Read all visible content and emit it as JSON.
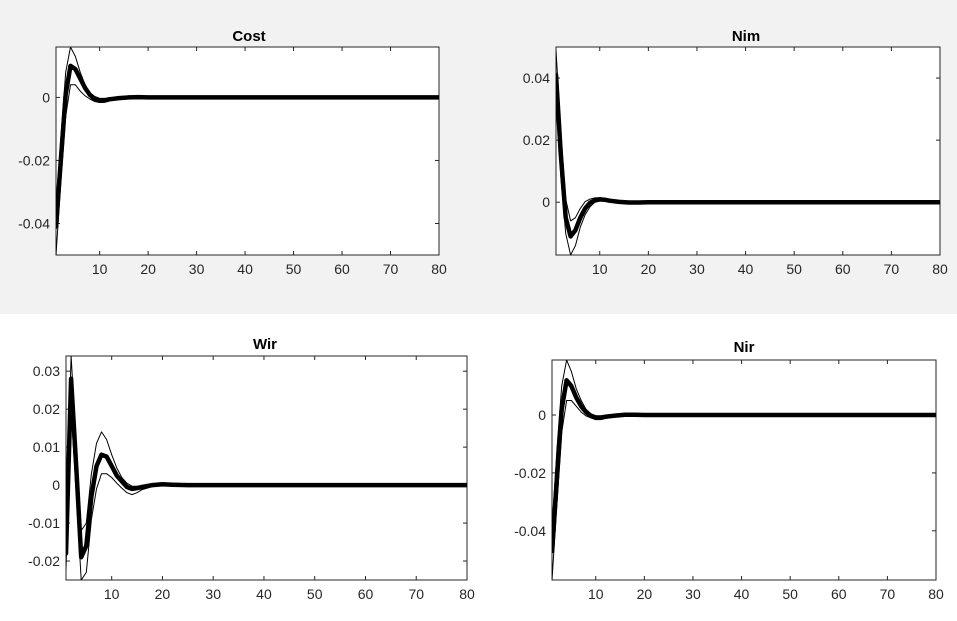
{
  "chart_data": [
    {
      "type": "line",
      "title": "Cost",
      "xlim": [
        1,
        80
      ],
      "ylim": [
        -0.05,
        0.016
      ],
      "xticks": [
        10,
        20,
        30,
        40,
        50,
        60,
        70,
        80
      ],
      "yticks": [
        0,
        -0.02,
        -0.04
      ],
      "xtick_labels": [
        "10",
        "20",
        "30",
        "40",
        "50",
        "60",
        "70",
        "80"
      ],
      "ytick_labels": [
        "0",
        "-0.02",
        "-0.04"
      ],
      "series": [
        {
          "role": "response",
          "x": [
            1,
            2,
            3,
            4,
            5,
            6,
            7,
            8,
            9,
            10,
            11,
            12,
            14,
            16,
            18,
            20,
            25,
            30,
            80
          ],
          "y": [
            -0.041,
            -0.02,
            0.001,
            0.01,
            0.009,
            0.006,
            0.003,
            0.0008,
            -0.0005,
            -0.001,
            -0.001,
            -0.0006,
            -0.0002,
            0,
            0.0001,
            0,
            0,
            0,
            0
          ]
        },
        {
          "role": "upper_band",
          "x": [
            1,
            2,
            3,
            4,
            5,
            6,
            7,
            8,
            9,
            10,
            11,
            12,
            14,
            16,
            18,
            20,
            25,
            30,
            80
          ],
          "y": [
            -0.036,
            -0.013,
            0.008,
            0.016,
            0.013,
            0.008,
            0.004,
            0.0015,
            0.0003,
            -0.0003,
            -0.0003,
            -0.0001,
            0.0001,
            0.0002,
            0.0002,
            0.0001,
            0,
            0,
            0
          ]
        },
        {
          "role": "lower_band",
          "x": [
            1,
            2,
            3,
            4,
            5,
            6,
            7,
            8,
            9,
            10,
            11,
            12,
            14,
            16,
            18,
            20,
            25,
            30,
            80
          ],
          "y": [
            -0.05,
            -0.027,
            -0.006,
            0.004,
            0.004,
            0.002,
            0.0005,
            -0.0005,
            -0.0013,
            -0.0016,
            -0.0015,
            -0.0011,
            -0.0005,
            -0.0002,
            0,
            0,
            0,
            0,
            0
          ]
        }
      ]
    },
    {
      "type": "line",
      "title": "Nim",
      "xlim": [
        1,
        80
      ],
      "ylim": [
        -0.017,
        0.05
      ],
      "xticks": [
        10,
        20,
        30,
        40,
        50,
        60,
        70,
        80
      ],
      "yticks": [
        0.04,
        0.02,
        0
      ],
      "xtick_labels": [
        "10",
        "20",
        "30",
        "40",
        "50",
        "60",
        "70",
        "80"
      ],
      "ytick_labels": [
        "0.04",
        "0.02",
        "0"
      ],
      "series": [
        {
          "role": "response",
          "x": [
            1,
            2,
            3,
            4,
            5,
            6,
            7,
            8,
            9,
            10,
            11,
            12,
            14,
            16,
            18,
            20,
            25,
            30,
            80
          ],
          "y": [
            0.041,
            0.015,
            -0.005,
            -0.011,
            -0.009,
            -0.005,
            -0.002,
            -0.0002,
            0.0006,
            0.0009,
            0.0008,
            0.0005,
            0.0001,
            -0.0001,
            -0.0001,
            0,
            0,
            0,
            0
          ]
        },
        {
          "role": "upper_band",
          "x": [
            1,
            2,
            3,
            4,
            5,
            6,
            7,
            8,
            9,
            10,
            11,
            12,
            14,
            16,
            18,
            20,
            25,
            30,
            80
          ],
          "y": [
            0.049,
            0.022,
            0.001,
            -0.006,
            -0.005,
            -0.002,
            0.0002,
            0.001,
            0.0014,
            0.0015,
            0.0013,
            0.0009,
            0.0004,
            0.0001,
            0,
            0,
            0,
            0,
            0
          ]
        },
        {
          "role": "lower_band",
          "x": [
            1,
            2,
            3,
            4,
            5,
            6,
            7,
            8,
            9,
            10,
            11,
            12,
            14,
            16,
            18,
            20,
            25,
            30,
            80
          ],
          "y": [
            0.036,
            0.008,
            -0.01,
            -0.017,
            -0.014,
            -0.008,
            -0.004,
            -0.0015,
            0,
            0.0004,
            0.0004,
            0.0002,
            -0.0002,
            -0.0003,
            -0.0002,
            -0.0001,
            0,
            0,
            0
          ]
        }
      ]
    },
    {
      "type": "line",
      "title": "Wir",
      "xlim": [
        1,
        80
      ],
      "ylim": [
        -0.025,
        0.034
      ],
      "xticks": [
        10,
        20,
        30,
        40,
        50,
        60,
        70,
        80
      ],
      "yticks": [
        0.03,
        0.02,
        0.01,
        0,
        -0.01,
        -0.02
      ],
      "xtick_labels": [
        "10",
        "20",
        "30",
        "40",
        "50",
        "60",
        "70",
        "80"
      ],
      "ytick_labels": [
        "0.03",
        "0.02",
        "0.01",
        "0",
        "-0.01",
        "-0.02"
      ],
      "series": [
        {
          "role": "response",
          "x": [
            1,
            2,
            3,
            4,
            5,
            6,
            7,
            8,
            9,
            10,
            11,
            12,
            13,
            14,
            15,
            16,
            18,
            20,
            22,
            25,
            30,
            80
          ],
          "y": [
            -0.018,
            0.028,
            0.005,
            -0.019,
            -0.016,
            -0.003,
            0.005,
            0.008,
            0.0075,
            0.005,
            0.0025,
            0.001,
            -0.0005,
            -0.001,
            -0.0008,
            -0.0005,
            0,
            0.0002,
            0.0001,
            0,
            0,
            0
          ]
        },
        {
          "role": "upper_band",
          "x": [
            1,
            2,
            3,
            4,
            5,
            6,
            7,
            8,
            9,
            10,
            11,
            12,
            13,
            14,
            15,
            16,
            18,
            20,
            22,
            25,
            30,
            80
          ],
          "y": [
            -0.012,
            0.034,
            0.011,
            -0.012,
            -0.01,
            0.003,
            0.011,
            0.014,
            0.012,
            0.008,
            0.0045,
            0.002,
            0.0005,
            -0.0003,
            -0.0003,
            -0.0002,
            0.0002,
            0.0004,
            0.0002,
            0,
            0,
            0
          ]
        },
        {
          "role": "lower_band",
          "x": [
            1,
            2,
            3,
            4,
            5,
            6,
            7,
            8,
            9,
            10,
            11,
            12,
            13,
            14,
            15,
            16,
            18,
            20,
            22,
            25,
            30,
            80
          ],
          "y": [
            -0.022,
            0.02,
            -0.002,
            -0.025,
            -0.023,
            -0.009,
            -0.001,
            0.003,
            0.003,
            0.002,
            0.0005,
            -0.0008,
            -0.002,
            -0.0025,
            -0.002,
            -0.0012,
            -0.0004,
            0,
            0,
            0,
            0,
            0
          ]
        }
      ]
    },
    {
      "type": "line",
      "title": "Nir",
      "xlim": [
        1,
        80
      ],
      "ylim": [
        -0.057,
        0.019
      ],
      "xticks": [
        10,
        20,
        30,
        40,
        50,
        60,
        70,
        80
      ],
      "yticks": [
        0,
        -0.02,
        -0.04
      ],
      "xtick_labels": [
        "10",
        "20",
        "30",
        "40",
        "50",
        "60",
        "70",
        "80"
      ],
      "ytick_labels": [
        "0",
        "-0.02",
        "-0.04"
      ],
      "series": [
        {
          "role": "response",
          "x": [
            1,
            2,
            3,
            4,
            5,
            6,
            7,
            8,
            9,
            10,
            11,
            12,
            14,
            16,
            18,
            20,
            25,
            30,
            80
          ],
          "y": [
            -0.047,
            -0.022,
            0.002,
            0.012,
            0.01,
            0.006,
            0.003,
            0.001,
            -0.0003,
            -0.0009,
            -0.0009,
            -0.0006,
            -0.0002,
            0.0001,
            0.0001,
            0,
            0,
            0,
            0
          ]
        },
        {
          "role": "upper_band",
          "x": [
            1,
            2,
            3,
            4,
            5,
            6,
            7,
            8,
            9,
            10,
            11,
            12,
            14,
            16,
            18,
            20,
            25,
            30,
            80
          ],
          "y": [
            -0.04,
            -0.012,
            0.01,
            0.019,
            0.015,
            0.009,
            0.005,
            0.002,
            0.0004,
            -0.0002,
            -0.0003,
            -0.0001,
            0.0001,
            0.0002,
            0.0002,
            0.0001,
            0,
            0,
            0
          ]
        },
        {
          "role": "lower_band",
          "x": [
            1,
            2,
            3,
            4,
            5,
            6,
            7,
            8,
            9,
            10,
            11,
            12,
            14,
            16,
            18,
            20,
            25,
            30,
            80
          ],
          "y": [
            -0.057,
            -0.031,
            -0.006,
            0.005,
            0.005,
            0.003,
            0.001,
            -0.0003,
            -0.001,
            -0.0016,
            -0.0016,
            -0.0012,
            -0.0006,
            -0.0002,
            0,
            0,
            0,
            0,
            0
          ]
        }
      ]
    }
  ]
}
